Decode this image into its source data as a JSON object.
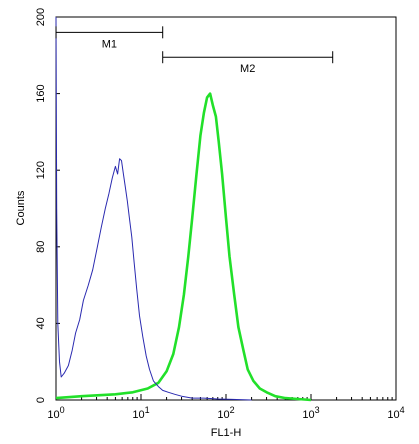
{
  "chart_data": {
    "type": "line",
    "title": "",
    "xlabel": "FL1-H",
    "ylabel": "Counts",
    "x_scale": "log",
    "xlim": [
      1,
      10000
    ],
    "ylim": [
      0,
      200
    ],
    "grid": false,
    "x_ticks": [
      {
        "value": 1,
        "base": "10",
        "exp": "0"
      },
      {
        "value": 10,
        "base": "10",
        "exp": "1"
      },
      {
        "value": 100,
        "base": "10",
        "exp": "2"
      },
      {
        "value": 1000,
        "base": "10",
        "exp": "3"
      },
      {
        "value": 10000,
        "base": "10",
        "exp": "4"
      }
    ],
    "y_ticks": [
      0,
      40,
      80,
      120,
      160,
      200
    ],
    "series": [
      {
        "color": "#2a2ab0",
        "x": [
          1.0,
          1.02,
          1.05,
          1.1,
          1.15,
          1.25,
          1.4,
          1.55,
          1.7,
          1.9,
          2.1,
          2.4,
          2.7,
          3.0,
          3.4,
          3.8,
          4.2,
          4.6,
          5.0,
          5.3,
          5.6,
          5.9,
          6.2,
          6.5,
          6.9,
          7.3,
          7.8,
          8.3,
          8.9,
          9.6,
          10.5,
          11.5,
          12.6,
          14,
          16,
          18,
          21,
          25,
          30,
          40,
          55,
          80,
          120,
          200
        ],
        "y": [
          205,
          100,
          40,
          20,
          12,
          14,
          18,
          26,
          35,
          42,
          52,
          60,
          68,
          78,
          90,
          100,
          108,
          116,
          122,
          118,
          126,
          125,
          118,
          112,
          104,
          95,
          85,
          72,
          58,
          44,
          33,
          23,
          16,
          10,
          7,
          5,
          4,
          3,
          2,
          1,
          1,
          0.5,
          0.3,
          0
        ]
      },
      {
        "color": "#22e02a",
        "x": [
          1,
          2,
          5,
          8,
          12,
          16,
          20,
          24,
          28,
          32,
          36,
          40,
          45,
          50,
          55,
          60,
          65,
          70,
          76,
          82,
          90,
          100,
          110,
          125,
          140,
          160,
          180,
          210,
          250,
          300,
          380,
          500,
          700,
          1000
        ],
        "y": [
          1,
          2,
          3,
          4,
          6,
          9,
          15,
          24,
          38,
          55,
          75,
          95,
          118,
          138,
          150,
          158,
          160,
          154,
          148,
          135,
          118,
          95,
          75,
          55,
          38,
          26,
          16,
          10,
          6,
          4,
          2,
          1,
          0.5,
          0
        ]
      }
    ],
    "markers": [
      {
        "label": "M1",
        "x_start": 1,
        "x_end": 18,
        "y": 192
      },
      {
        "label": "M2",
        "x_start": 18,
        "x_end": 1800,
        "y": 179
      }
    ]
  }
}
